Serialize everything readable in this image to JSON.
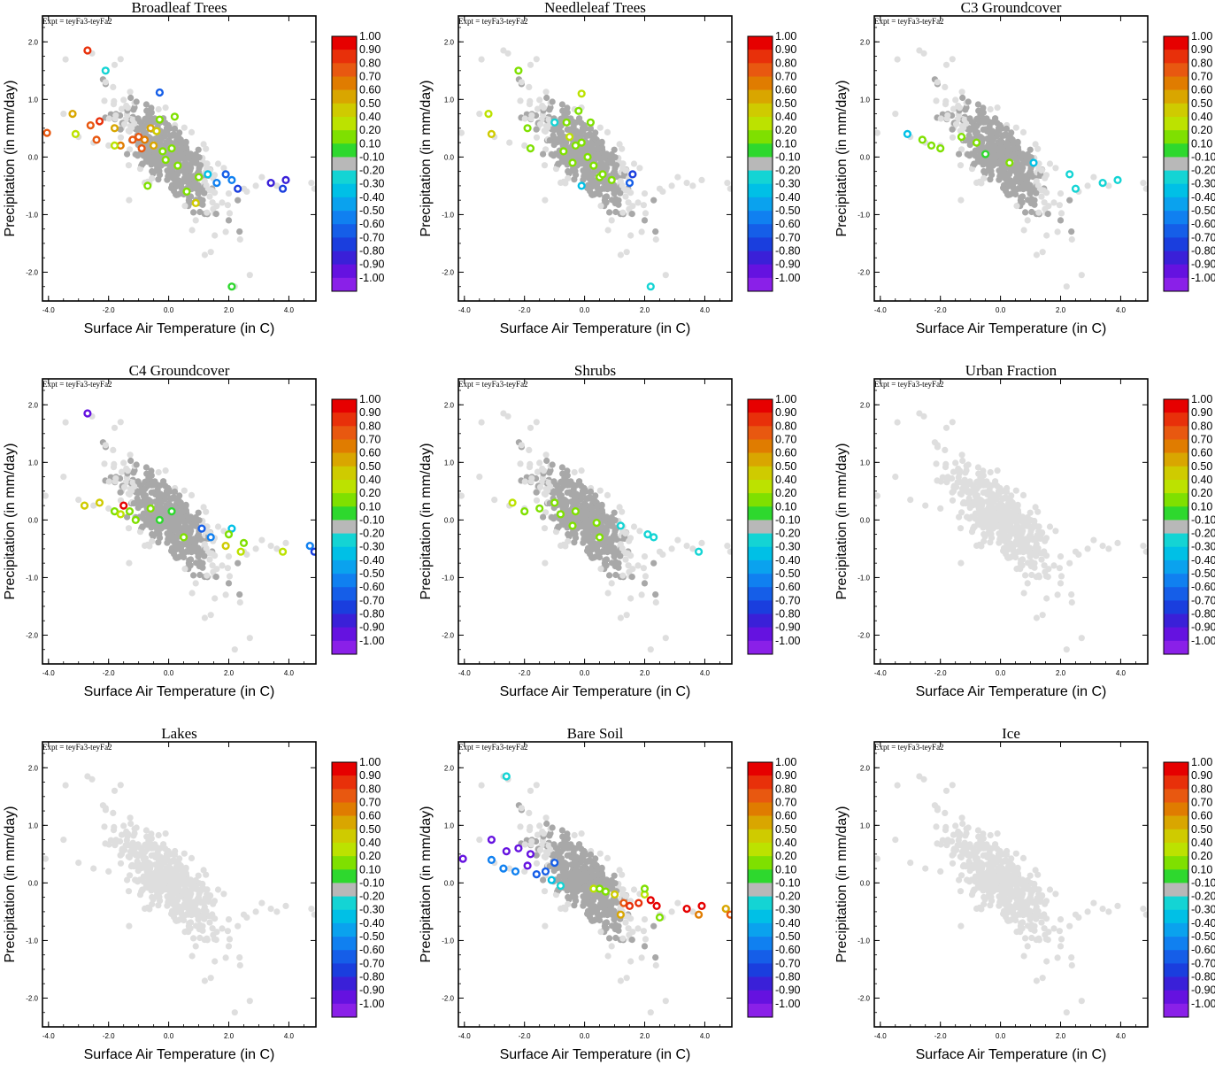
{
  "chart_data": {
    "type": "scatter",
    "layout": "3x3 panel grid",
    "expt_label": "Expt = teyFa3-teyFa2",
    "xlabel": "Surface Air Temperature (in C)",
    "ylabel": "Precipitation (in mm/day)",
    "xlim": [
      -4.2,
      4.9
    ],
    "ylim": [
      -2.5,
      2.45
    ],
    "x_ticks": [
      "-4.0",
      "-2.0",
      "0.0",
      "2.0",
      "4.0"
    ],
    "x_tick_values": [
      -4,
      -2,
      0,
      2,
      4
    ],
    "y_ticks": [
      "2.0",
      "1.0",
      "0.0",
      "-1.0",
      "-2.0"
    ],
    "y_tick_values": [
      2,
      1,
      0,
      -1,
      -2
    ],
    "colorbar": {
      "labels": [
        "1.00",
        "0.90",
        "0.80",
        "0.70",
        "0.60",
        "0.50",
        "0.40",
        "0.20",
        "0.10",
        "-0.10",
        "-0.20",
        "-0.30",
        "-0.40",
        "-0.50",
        "-0.60",
        "-0.70",
        "-0.80",
        "-0.90",
        "-1.00"
      ],
      "colors": [
        "#e60000",
        "#e8300a",
        "#e85810",
        "#e07c00",
        "#d9a600",
        "#cfcb00",
        "#bce200",
        "#7fe000",
        "#2ed82e",
        "#b8b8b8",
        "#14d4d4",
        "#00c0e6",
        "#0aa2ee",
        "#1080f0",
        "#155ee8",
        "#1a3ede",
        "#3a20d8",
        "#6512e0",
        "#8a20e8"
      ]
    },
    "point_colors": {
      "inactive_light": "#dedede",
      "inactive_dark": "#a8a8a8"
    },
    "panels": [
      {
        "title": "Broadleaf Trees",
        "active_points": [
          {
            "x": -2.7,
            "y": 1.85,
            "c": 0.9
          },
          {
            "x": -2.1,
            "y": 1.5,
            "c": -0.2
          },
          {
            "x": -4.05,
            "y": 0.42,
            "c": 0.8
          },
          {
            "x": -3.2,
            "y": 0.75,
            "c": 0.6
          },
          {
            "x": -3.1,
            "y": 0.4,
            "c": 0.4
          },
          {
            "x": -2.6,
            "y": 0.55,
            "c": 0.8
          },
          {
            "x": -2.3,
            "y": 0.62,
            "c": 0.9
          },
          {
            "x": -2.4,
            "y": 0.3,
            "c": 0.8
          },
          {
            "x": -1.8,
            "y": 0.5,
            "c": 0.6
          },
          {
            "x": -1.6,
            "y": 0.2,
            "c": 0.7
          },
          {
            "x": -1.2,
            "y": 0.3,
            "c": 0.8
          },
          {
            "x": -1.0,
            "y": 0.35,
            "c": 0.8
          },
          {
            "x": -0.8,
            "y": 0.3,
            "c": 0.7
          },
          {
            "x": -0.9,
            "y": 0.15,
            "c": 0.8
          },
          {
            "x": -0.6,
            "y": 0.5,
            "c": 0.6
          },
          {
            "x": -0.4,
            "y": 0.45,
            "c": 0.5
          },
          {
            "x": -0.5,
            "y": 0.2,
            "c": 0.6
          },
          {
            "x": -0.3,
            "y": 0.65,
            "c": 0.2
          },
          {
            "x": -0.2,
            "y": 0.1,
            "c": 0.2
          },
          {
            "x": -0.1,
            "y": -0.05,
            "c": 0.2
          },
          {
            "x": 0.1,
            "y": 0.15,
            "c": 0.2
          },
          {
            "x": 0.3,
            "y": -0.15,
            "c": 0.2
          },
          {
            "x": -0.3,
            "y": 1.12,
            "c": -0.6
          },
          {
            "x": 0.2,
            "y": 0.7,
            "c": 0.2
          },
          {
            "x": 0.6,
            "y": -0.6,
            "c": 0.2
          },
          {
            "x": 1.0,
            "y": -0.35,
            "c": 0.2
          },
          {
            "x": 1.3,
            "y": -0.3,
            "c": -0.3
          },
          {
            "x": 1.6,
            "y": -0.45,
            "c": -0.5
          },
          {
            "x": 1.9,
            "y": -0.3,
            "c": -0.6
          },
          {
            "x": 2.1,
            "y": -0.4,
            "c": -0.5
          },
          {
            "x": 2.3,
            "y": -0.55,
            "c": -0.7
          },
          {
            "x": 3.4,
            "y": -0.45,
            "c": -0.8
          },
          {
            "x": 3.9,
            "y": -0.4,
            "c": -0.8
          },
          {
            "x": 3.8,
            "y": -0.55,
            "c": -0.7
          },
          {
            "x": 2.1,
            "y": -2.25,
            "c": 0.1
          },
          {
            "x": -1.8,
            "y": 0.2,
            "c": 0.4
          },
          {
            "x": -0.7,
            "y": -0.5,
            "c": 0.3
          },
          {
            "x": 0.9,
            "y": -0.8,
            "c": 0.5
          }
        ]
      },
      {
        "title": "Needleleaf Trees",
        "active_points": [
          {
            "x": -2.2,
            "y": 1.5,
            "c": 0.3
          },
          {
            "x": -3.2,
            "y": 0.75,
            "c": 0.4
          },
          {
            "x": -3.1,
            "y": 0.4,
            "c": 0.5
          },
          {
            "x": -1.9,
            "y": 0.5,
            "c": 0.3
          },
          {
            "x": -1.0,
            "y": 0.6,
            "c": -0.2
          },
          {
            "x": -1.8,
            "y": 0.15,
            "c": 0.2
          },
          {
            "x": -0.6,
            "y": 0.6,
            "c": 0.3
          },
          {
            "x": -0.5,
            "y": 0.35,
            "c": 0.4
          },
          {
            "x": -0.3,
            "y": 0.2,
            "c": 0.2
          },
          {
            "x": -0.1,
            "y": 0.25,
            "c": 0.2
          },
          {
            "x": 0.1,
            "y": 0.0,
            "c": 0.2
          },
          {
            "x": 0.3,
            "y": -0.15,
            "c": 0.2
          },
          {
            "x": -0.4,
            "y": -0.1,
            "c": 0.2
          },
          {
            "x": 0.5,
            "y": -0.35,
            "c": 0.2
          },
          {
            "x": -0.1,
            "y": 1.1,
            "c": 0.4
          },
          {
            "x": -0.2,
            "y": 0.8,
            "c": 0.3
          },
          {
            "x": -0.7,
            "y": 0.1,
            "c": 0.2
          },
          {
            "x": -0.1,
            "y": -0.5,
            "c": -0.3
          },
          {
            "x": 0.6,
            "y": -0.3,
            "c": 0.2
          },
          {
            "x": 0.9,
            "y": -0.4,
            "c": 0.2
          },
          {
            "x": 1.6,
            "y": -0.3,
            "c": -0.7
          },
          {
            "x": 1.5,
            "y": -0.45,
            "c": -0.6
          },
          {
            "x": 2.2,
            "y": -2.25,
            "c": -0.2
          },
          {
            "x": 0.2,
            "y": 0.6,
            "c": 0.2
          }
        ]
      },
      {
        "title": "C3 Groundcover",
        "active_points": [
          {
            "x": -3.1,
            "y": 0.4,
            "c": -0.3
          },
          {
            "x": -2.6,
            "y": 0.3,
            "c": 0.2
          },
          {
            "x": -2.3,
            "y": 0.2,
            "c": 0.2
          },
          {
            "x": -2.0,
            "y": 0.15,
            "c": 0.2
          },
          {
            "x": -1.3,
            "y": 0.35,
            "c": 0.2
          },
          {
            "x": -0.8,
            "y": 0.25,
            "c": 0.2
          },
          {
            "x": -0.5,
            "y": 0.05,
            "c": 0.1
          },
          {
            "x": 0.3,
            "y": -0.1,
            "c": 0.2
          },
          {
            "x": 1.1,
            "y": -0.1,
            "c": -0.3
          },
          {
            "x": 2.3,
            "y": -0.3,
            "c": -0.2
          },
          {
            "x": 2.5,
            "y": -0.55,
            "c": -0.2
          },
          {
            "x": 3.4,
            "y": -0.45,
            "c": -0.2
          },
          {
            "x": 3.9,
            "y": -0.4,
            "c": -0.2
          }
        ]
      },
      {
        "title": "C4 Groundcover",
        "active_points": [
          {
            "x": -2.7,
            "y": 1.85,
            "c": -0.9
          },
          {
            "x": -2.8,
            "y": 0.25,
            "c": 0.5
          },
          {
            "x": -2.3,
            "y": 0.3,
            "c": 0.5
          },
          {
            "x": -1.8,
            "y": 0.15,
            "c": 0.2
          },
          {
            "x": -1.5,
            "y": 0.25,
            "c": 1.0
          },
          {
            "x": -1.6,
            "y": 0.1,
            "c": 0.4
          },
          {
            "x": -1.3,
            "y": 0.15,
            "c": 0.2
          },
          {
            "x": -1.1,
            "y": 0.0,
            "c": 0.2
          },
          {
            "x": -0.6,
            "y": 0.2,
            "c": 0.2
          },
          {
            "x": -0.3,
            "y": 0.0,
            "c": 0.1
          },
          {
            "x": 0.1,
            "y": 0.15,
            "c": 0.1
          },
          {
            "x": 0.5,
            "y": -0.3,
            "c": 0.2
          },
          {
            "x": 1.1,
            "y": -0.15,
            "c": -0.6
          },
          {
            "x": 1.4,
            "y": -0.3,
            "c": -0.5
          },
          {
            "x": 2.1,
            "y": -0.15,
            "c": -0.3
          },
          {
            "x": 2.0,
            "y": -0.25,
            "c": 0.3
          },
          {
            "x": 1.9,
            "y": -0.45,
            "c": 0.5
          },
          {
            "x": 2.4,
            "y": -0.55,
            "c": 0.4
          },
          {
            "x": 3.8,
            "y": -0.55,
            "c": 0.4
          },
          {
            "x": 4.7,
            "y": -0.45,
            "c": -0.5
          },
          {
            "x": 4.85,
            "y": -0.55,
            "c": -0.7
          },
          {
            "x": 2.5,
            "y": -0.4,
            "c": 0.2
          }
        ]
      },
      {
        "title": "Shrubs",
        "active_points": [
          {
            "x": -2.4,
            "y": 0.3,
            "c": 0.4
          },
          {
            "x": -2.0,
            "y": 0.15,
            "c": 0.2
          },
          {
            "x": -1.5,
            "y": 0.2,
            "c": 0.3
          },
          {
            "x": -1.0,
            "y": 0.3,
            "c": 0.2
          },
          {
            "x": -0.8,
            "y": 0.1,
            "c": 0.2
          },
          {
            "x": -0.3,
            "y": 0.15,
            "c": 0.2
          },
          {
            "x": -0.4,
            "y": -0.1,
            "c": 0.2
          },
          {
            "x": 0.4,
            "y": -0.05,
            "c": 0.2
          },
          {
            "x": 0.5,
            "y": -0.3,
            "c": 0.2
          },
          {
            "x": 1.2,
            "y": -0.1,
            "c": -0.2
          },
          {
            "x": 2.1,
            "y": -0.25,
            "c": -0.2
          },
          {
            "x": 2.3,
            "y": -0.3,
            "c": -0.2
          },
          {
            "x": 3.8,
            "y": -0.55,
            "c": -0.2
          }
        ]
      },
      {
        "title": "Urban Fraction",
        "active_points": []
      },
      {
        "title": "Lakes",
        "active_points": []
      },
      {
        "title": "Bare Soil",
        "active_points": [
          {
            "x": -2.6,
            "y": 1.85,
            "c": -0.2
          },
          {
            "x": -4.05,
            "y": 0.42,
            "c": -0.9
          },
          {
            "x": -3.1,
            "y": 0.75,
            "c": -0.9
          },
          {
            "x": -2.6,
            "y": 0.55,
            "c": -0.9
          },
          {
            "x": -2.2,
            "y": 0.6,
            "c": -0.9
          },
          {
            "x": -1.8,
            "y": 0.5,
            "c": -0.9
          },
          {
            "x": -1.9,
            "y": 0.3,
            "c": -0.9
          },
          {
            "x": -3.1,
            "y": 0.4,
            "c": -0.5
          },
          {
            "x": -2.7,
            "y": 0.25,
            "c": -0.5
          },
          {
            "x": -2.3,
            "y": 0.2,
            "c": -0.5
          },
          {
            "x": -1.6,
            "y": 0.15,
            "c": -0.6
          },
          {
            "x": -1.3,
            "y": 0.2,
            "c": -0.6
          },
          {
            "x": -1.0,
            "y": 0.35,
            "c": -0.6
          },
          {
            "x": -1.1,
            "y": 0.05,
            "c": -0.3
          },
          {
            "x": -0.8,
            "y": -0.05,
            "c": -0.2
          },
          {
            "x": 0.3,
            "y": -0.1,
            "c": 0.4
          },
          {
            "x": 0.5,
            "y": -0.1,
            "c": 0.2
          },
          {
            "x": 0.7,
            "y": -0.15,
            "c": 0.3
          },
          {
            "x": 1.0,
            "y": -0.2,
            "c": 0.5
          },
          {
            "x": 1.3,
            "y": -0.35,
            "c": 0.8
          },
          {
            "x": 1.5,
            "y": -0.4,
            "c": 0.9
          },
          {
            "x": 1.8,
            "y": -0.35,
            "c": 0.9
          },
          {
            "x": 2.0,
            "y": -0.2,
            "c": 0.4
          },
          {
            "x": 2.2,
            "y": -0.3,
            "c": 1.0
          },
          {
            "x": 2.4,
            "y": -0.4,
            "c": 1.0
          },
          {
            "x": 3.4,
            "y": -0.45,
            "c": 1.0
          },
          {
            "x": 3.9,
            "y": -0.4,
            "c": 1.0
          },
          {
            "x": 4.7,
            "y": -0.45,
            "c": 0.6
          },
          {
            "x": 4.85,
            "y": -0.55,
            "c": 0.8
          },
          {
            "x": 3.8,
            "y": -0.55,
            "c": 0.7
          },
          {
            "x": 2.5,
            "y": -0.6,
            "c": 0.3
          },
          {
            "x": 1.2,
            "y": -0.55,
            "c": 0.6
          },
          {
            "x": 2.0,
            "y": -0.1,
            "c": 0.2
          }
        ]
      },
      {
        "title": "Ice",
        "active_points": []
      }
    ]
  }
}
